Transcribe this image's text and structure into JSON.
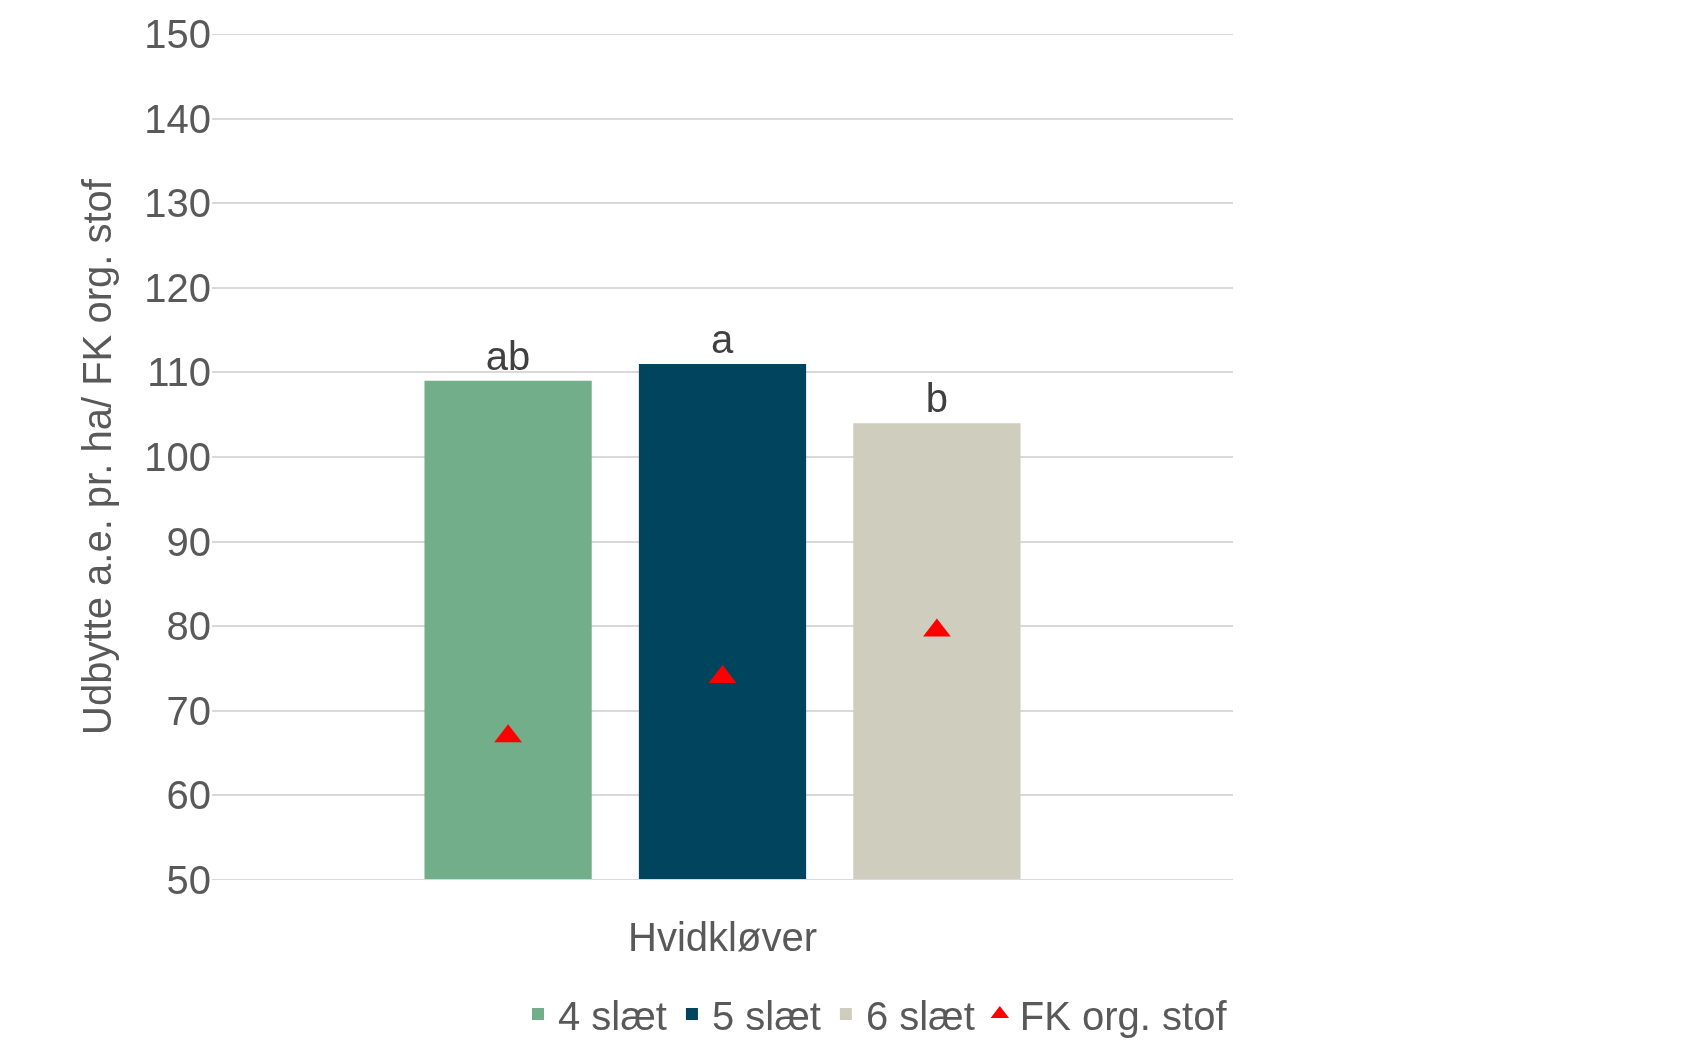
{
  "chart_data": {
    "type": "bar",
    "categories": [
      "Hvidkløver"
    ],
    "ylabel": "Udbytte a.e. pr. ha/ FK org. stof",
    "series": [
      {
        "name": "4 slæt",
        "color": "#72ae8a",
        "values": [
          109
        ],
        "value_labels": [
          "ab"
        ]
      },
      {
        "name": "5 slæt",
        "color": "#00445e",
        "values": [
          111
        ],
        "value_labels": [
          "a"
        ]
      },
      {
        "name": "6 slæt",
        "color": "#cfcdbd",
        "values": [
          104
        ],
        "value_labels": [
          "b"
        ]
      },
      {
        "name": "FK org. stof",
        "type": "scatter",
        "color": "#ff0000",
        "values": [
          67
        ]
      },
      {
        "type": "scatter",
        "color": "#ff0000",
        "values": [
          74
        ]
      },
      {
        "type": "scatter",
        "color": "#ff0000",
        "values": [
          79.5
        ]
      }
    ],
    "marker": "triangle",
    "ylim": [
      50,
      150
    ],
    "yticks": [
      50,
      60,
      70,
      80,
      90,
      100,
      110,
      120,
      130,
      140,
      150
    ],
    "grid": "y",
    "legend": "bottom right"
  }
}
